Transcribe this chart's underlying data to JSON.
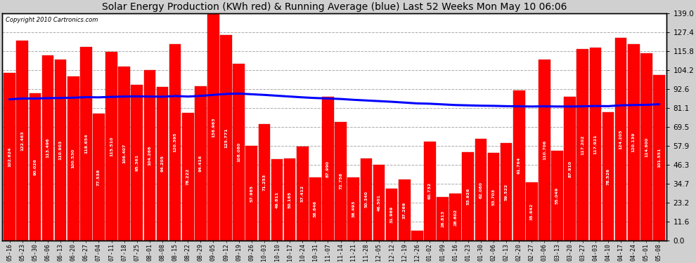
{
  "title": "Solar Energy Production (KWh red) & Running Average (blue) Last 52 Weeks Mon May 10 06:06",
  "copyright": "Copyright 2010 Cartronics.com",
  "bar_color": "#ff0000",
  "avg_line_color": "#0000ff",
  "background_color": "#d0d0d0",
  "plot_bg_color": "#ffffff",
  "ylabel_right_values": [
    0.0,
    11.6,
    23.2,
    34.7,
    46.3,
    57.9,
    69.5,
    81.1,
    92.6,
    104.2,
    115.8,
    127.4,
    139.0
  ],
  "categories": [
    "05-16",
    "05-23",
    "05-30",
    "06-06",
    "06-13",
    "06-20",
    "06-27",
    "07-04",
    "07-11",
    "07-18",
    "07-25",
    "08-01",
    "08-08",
    "08-15",
    "08-22",
    "08-29",
    "09-05",
    "09-12",
    "09-19",
    "09-26",
    "10-03",
    "10-10",
    "10-17",
    "10-24",
    "10-31",
    "11-07",
    "11-14",
    "11-21",
    "11-28",
    "12-05",
    "12-12",
    "12-19",
    "12-26",
    "01-02",
    "01-09",
    "01-16",
    "01-23",
    "01-30",
    "02-06",
    "02-13",
    "02-20",
    "02-27",
    "03-06",
    "03-13",
    "03-20",
    "03-27",
    "04-03",
    "04-10",
    "04-17",
    "04-24",
    "05-01",
    "05-08"
  ],
  "values": [
    102.624,
    122.463,
    90.026,
    113.496,
    110.903,
    100.53,
    118.654,
    77.538,
    115.51,
    106.407,
    95.361,
    104.266,
    94.205,
    120.395,
    78.222,
    94.416,
    138.963,
    125.771,
    108.08,
    57.985,
    71.253,
    49.811,
    50.165,
    57.412,
    38.846,
    87.99,
    72.758,
    38.493,
    50.34,
    46.501,
    31.969,
    37.269,
    6.079,
    60.732,
    26.813,
    28.602,
    53.926,
    62.08,
    53.703,
    59.522,
    91.764,
    35.642,
    110.706,
    55.049,
    87.91,
    117.202,
    117.921,
    78.526,
    124.205,
    120.139,
    114.6,
    101.551
  ],
  "running_avg": [
    86.5,
    87.0,
    87.0,
    87.2,
    87.3,
    87.5,
    87.8,
    87.7,
    88.0,
    88.2,
    88.3,
    88.2,
    88.1,
    88.5,
    88.2,
    88.6,
    89.2,
    89.8,
    90.0,
    89.6,
    89.2,
    88.7,
    88.2,
    87.7,
    87.3,
    87.0,
    86.7,
    86.2,
    85.8,
    85.4,
    85.0,
    84.5,
    84.0,
    83.8,
    83.4,
    83.0,
    82.8,
    82.6,
    82.5,
    82.3,
    82.2,
    82.1,
    82.2,
    82.1,
    82.1,
    82.2,
    82.4,
    82.3,
    82.8,
    83.0,
    83.1,
    83.5
  ]
}
